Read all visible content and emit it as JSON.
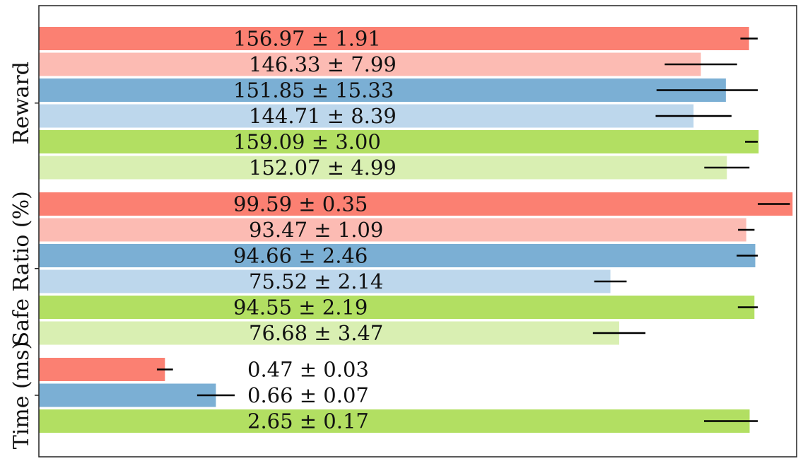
{
  "chart_data": {
    "type": "bar",
    "orientation": "horizontal",
    "colors": {
      "red": "#fb8072",
      "red_light": "#fcbbb3",
      "blue": "#7bafd4",
      "blue_light": "#bdd7ec",
      "green": "#b2df62",
      "green_light": "#d9efb2"
    },
    "groups": [
      {
        "name": "Reward",
        "bars": [
          {
            "value": 156.97,
            "error": 1.91,
            "label": "156.97 ± 1.91",
            "color": "red"
          },
          {
            "value": 146.33,
            "error": 7.99,
            "label": "146.33 ± 7.99",
            "color": "red_light"
          },
          {
            "value": 151.85,
            "error": 15.33,
            "label": "151.85 ± 15.33",
            "color": "blue"
          },
          {
            "value": 144.71,
            "error": 8.39,
            "label": "144.71 ± 8.39",
            "color": "blue_light"
          },
          {
            "value": 159.09,
            "error": 3.0,
            "label": "159.09 ± 3.00",
            "color": "green"
          },
          {
            "value": 152.07,
            "error": 4.99,
            "label": "152.07 ± 4.99",
            "color": "green_light"
          }
        ]
      },
      {
        "name": "Safe Ratio (%)",
        "bars": [
          {
            "value": 99.59,
            "error": 0.35,
            "label": "99.59 ± 0.35",
            "color": "red"
          },
          {
            "value": 93.47,
            "error": 1.09,
            "label": "93.47 ± 1.09",
            "color": "red_light"
          },
          {
            "value": 94.66,
            "error": 2.46,
            "label": "94.66 ± 2.46",
            "color": "blue"
          },
          {
            "value": 75.52,
            "error": 2.14,
            "label": "75.52 ± 2.14",
            "color": "blue_light"
          },
          {
            "value": 94.55,
            "error": 2.19,
            "label": "94.55 ± 2.19",
            "color": "green"
          },
          {
            "value": 76.68,
            "error": 3.47,
            "label": "76.68 ± 3.47",
            "color": "green_light"
          }
        ]
      },
      {
        "name": "Time (ms)",
        "bars": [
          {
            "value": 0.47,
            "error": 0.03,
            "label": "0.47 ± 0.03",
            "color": "red"
          },
          {
            "value": 0.66,
            "error": 0.07,
            "label": "0.66 ± 0.07",
            "color": "blue"
          },
          {
            "value": 2.65,
            "error": 0.17,
            "label": "2.65 ± 0.17",
            "color": "green"
          }
        ]
      }
    ],
    "grid": false,
    "legend": "none"
  }
}
